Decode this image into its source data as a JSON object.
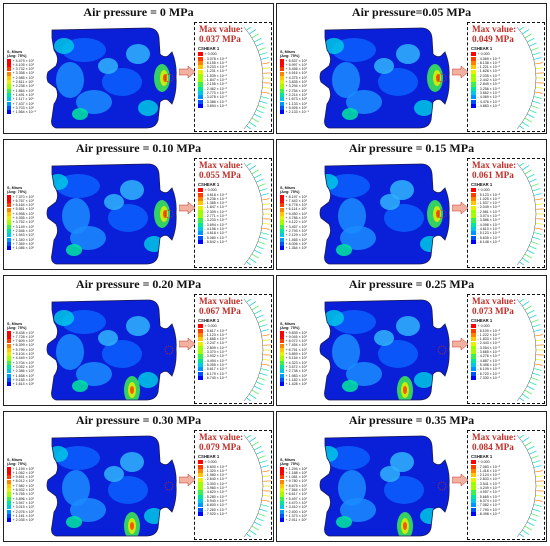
{
  "colors": {
    "contour": [
      "#0000ff",
      "#0050ff",
      "#0096ff",
      "#00c8e6",
      "#00e6a0",
      "#3cf050",
      "#a0ff00",
      "#e6f000",
      "#ffc800",
      "#ff8200",
      "#ff3c00",
      "#ff0000"
    ],
    "max_value_text": "#c0302a"
  },
  "panels": [
    {
      "title": "Air pressure = 0 MPa",
      "max_label": "Max value:",
      "max_value": "0.037 MPa",
      "smises_title": [
        "S, Mises",
        "(Avg: 75%)"
      ],
      "smises": [
        "+ 4.479 × 10¹",
        "+ 4.105 × 10¹",
        "+ 3.732 × 10¹",
        "+ 3.358 × 10¹",
        "+ 2.985 × 10¹",
        "+ 2.611 × 10¹",
        "+ 2.238 × 10¹",
        "+ 1.864 × 10¹",
        "+ 1.491 × 10¹",
        "+ 1.117 × 10¹",
        "+ 7.437 × 10⁰",
        "+ 3.703 × 10⁰",
        "+ 1.564 × 10⁻²"
      ],
      "cshear_title": "CSHEAR 1",
      "cshear": [
        "+ 0.000",
        "- 3.078 × 10⁻³",
        "- 6.155 × 10⁻³",
        "- 9.233 × 10⁻³",
        "- 1.231 × 10⁻²",
        "- 1.539 × 10⁻²",
        "- 1.847 × 10⁻²",
        "- 2.155 × 10⁻²",
        "- 2.462 × 10⁻²",
        "- 2.770 × 10⁻²",
        "- 3.078 × 10⁻²",
        "- 3.386 × 10⁻²",
        "- 3.694 × 10⁻²"
      ]
    },
    {
      "title": "Air pressure=0.05 MPa",
      "max_label": "Max value:",
      "max_value": "0.049 MPa",
      "smises_title": [
        "S, Mises",
        "(Avg: 75%)"
      ],
      "smises": [
        "+ 6.537 × 10¹",
        "+ 5.997 × 10¹",
        "+ 5.456 × 10¹",
        "+ 4.916 × 10¹",
        "+ 4.375 × 10¹",
        "+ 3.835 × 10¹",
        "+ 3.294 × 10¹",
        "+ 2.754 × 10¹",
        "+ 2.214 × 10¹",
        "+ 1.673 × 10¹",
        "+ 1.133 × 10¹",
        "+ 5.926 × 10⁰",
        "+ 2.133 × 10⁻¹"
      ],
      "cshear_title": "CSHEAR 1",
      "cshear": [
        "+ 0.000",
        "- 4.069 × 10⁻³",
        "- 8.138 × 10⁻³",
        "- 1.221 × 10⁻²",
        "- 1.628 × 10⁻²",
        "- 2.035 × 10⁻²",
        "- 2.442 × 10⁻²",
        "- 2.849 × 10⁻²",
        "- 3.256 × 10⁻²",
        "- 3.662 × 10⁻²",
        "- 4.069 × 10⁻²",
        "- 4.476 × 10⁻²",
        "- 4.883 × 10⁻²"
      ]
    },
    {
      "title": "Air pressure = 0.10 MPa",
      "max_label": "Max value:",
      "max_value": "0.055 MPa",
      "smises_title": [
        "S, Mises",
        "(Avg: 75%)"
      ],
      "smises": [
        "+ 7.370 × 10¹",
        "+ 6.767 × 10¹",
        "+ 6.164 × 10¹",
        "+ 5.561 × 10¹",
        "+ 4.958 × 10¹",
        "+ 4.355 × 10¹",
        "+ 3.752 × 10¹",
        "+ 3.149 × 10¹",
        "+ 2.546 × 10¹",
        "+ 1.943 × 10¹",
        "+ 1.340 × 10¹",
        "+ 7.369 × 10⁰",
        "+ 1.086 × 10⁰"
      ],
      "cshear_title": "CSHEAR 1",
      "cshear": [
        "+ 0.000",
        "- 4.618 × 10⁻³",
        "- 9.236 × 10⁻³",
        "- 1.385 × 10⁻²",
        "- 1.847 × 10⁻²",
        "- 2.309 × 10⁻²",
        "- 2.771 × 10⁻²",
        "- 3.233 × 10⁻²",
        "- 3.694 × 10⁻²",
        "- 4.156 × 10⁻²",
        "- 4.618 × 10⁻²",
        "- 5.080 × 10⁻²",
        "- 5.542 × 10⁻²"
      ]
    },
    {
      "title": "Air pressure = 0.15 MPa",
      "max_label": "Max value:",
      "max_value": "0.061 MPa",
      "smises_title": [
        "S, Mises",
        "(Avg: 75%)"
      ],
      "smises": [
        "+ 8.197 × 10¹",
        "+ 7.442 × 10¹",
        "+ 6.778 × 10¹",
        "+ 6.114 × 10¹",
        "+ 5.450 × 10¹",
        "+ 4.786 × 10¹",
        "+ 4.122 × 10¹",
        "+ 3.457 × 10¹",
        "+ 2.793 × 10¹",
        "+ 2.129 × 10¹",
        "+ 1.465 × 10¹",
        "+ 8.006 × 10⁰",
        "+ 1.364 × 10⁰"
      ],
      "cshear_title": "CSHEAR 1",
      "cshear": [
        "+ 0.000",
        "- 5.123 × 10⁻³",
        "- 1.025 × 10⁻²",
        "- 1.537 × 10⁻²",
        "- 2.049 × 10⁻²",
        "- 2.561 × 10⁻²",
        "- 3.074 × 10⁻²",
        "- 3.586 × 10⁻²",
        "- 4.098 × 10⁻²",
        "- 4.610 × 10⁻²",
        "- 5.123 × 10⁻²",
        "- 5.635 × 10⁻²",
        "- 6.148 × 10⁻²"
      ]
    },
    {
      "title": "Air pressure = 0.20 MPa",
      "max_label": "Max value:",
      "max_value": "0.067 MPa",
      "smises_title": [
        "S, Mises",
        "(Avg: 75%)"
      ],
      "smises": [
        "+ 8.438 × 10¹",
        "+ 7.728 × 10¹",
        "+ 7.609 × 10¹",
        "+ 6.399 × 10¹",
        "+ 5.799 × 10¹",
        "+ 5.104 × 10¹",
        "+ 4.449 × 10¹",
        "+ 3.704 × 10¹",
        "+ 3.052 × 10¹",
        "+ 2.386 × 10¹",
        "+ 1.658 × 10¹",
        "+ 9.165 × 10⁰",
        "+ 1.614 × 10⁰"
      ],
      "cshear_title": "CSHEAR 1",
      "cshear": [
        "+ 0.000",
        "- 5.617 × 10⁻³",
        "- 1.123 × 10⁻²",
        "- 1.685 × 10⁻²",
        "- 2.247 × 10⁻²",
        "- 2.809 × 10⁻²",
        "- 3.370 × 10⁻²",
        "- 3.932 × 10⁻²",
        "- 4.494 × 10⁻²",
        "- 5.055 × 10⁻²",
        "- 5.617 × 10⁻²",
        "- 6.179 × 10⁻²",
        "- 6.740 × 10⁻²"
      ]
    },
    {
      "title": "Air pressure = 0.25 MPa",
      "max_label": "Max value:",
      "max_value": "0.073 MPa",
      "smises_title": [
        "S, Mises",
        "(Avg: 75%)"
      ],
      "smises": [
        "+ 9.839 × 10¹",
        "+ 9.045 × 10¹",
        "+ 8.072 × 10¹",
        "+ 7.454 × 10¹",
        "+ 6.751 × 10¹",
        "+ 5.859 × 10¹",
        "+ 5.154 × 10¹",
        "+ 4.323 × 10¹",
        "+ 3.572 × 10¹",
        "+ 2.738 × 10¹",
        "+ 1.983 × 10¹",
        "+ 1.182 × 10¹",
        "+ 1.428 × 10⁰"
      ],
      "cshear_title": "CSHEAR 1",
      "cshear": [
        "+ 0.000",
        "- 6.109 × 10⁻³",
        "- 1.222 × 10⁻²",
        "- 1.833 × 10⁻²",
        "- 2.443 × 10⁻²",
        "- 3.054 × 10⁻²",
        "- 3.665 × 10⁻²",
        "- 4.276 × 10⁻²",
        "- 4.887 × 10⁻²",
        "- 5.498 × 10⁻²",
        "- 6.109 × 10⁻²",
        "- 6.720 × 10⁻²",
        "- 7.330 × 10⁻²"
      ]
    },
    {
      "title": "Air pressure = 0.30 MPa",
      "max_label": "Max value:",
      "max_value": "0.079 MPa",
      "smises_title": [
        "S, Mises",
        "(Avg: 75%)"
      ],
      "smises": [
        "+ 1.159 × 10²",
        "+ 1.062 × 10²",
        "+ 9.651 × 10¹",
        "+ 8.012 × 10¹",
        "+ 7.982 × 10¹",
        "+ 6.932 × 10¹",
        "+ 5.765 × 10¹",
        "+ 4.896 × 10¹",
        "+ 3.947 × 10¹",
        "+ 3.015 × 10¹",
        "+ 2.076 × 10¹",
        "+ 1.161 × 10¹",
        "+ 2.035 × 10⁰"
      ],
      "cshear_title": "CSHEAR 1",
      "cshear": [
        "+ 0.000",
        "- 6.600 × 10⁻³",
        "- 1.320 × 10⁻²",
        "- 1.980 × 10⁻²",
        "- 2.640 × 10⁻²",
        "- 3.300 × 10⁻²",
        "- 3.960 × 10⁻²",
        "- 4.620 × 10⁻²",
        "- 5.280 × 10⁻²",
        "- 5.940 × 10⁻²",
        "- 6.600 × 10⁻²",
        "- 7.260 × 10⁻²",
        "- 7.920 × 10⁻²"
      ]
    },
    {
      "title": "Air pressure = 0.35 MPa",
      "max_label": "Max value:",
      "max_value": "0.084 MPa",
      "smises_title": [
        "S, Mises",
        "(Avg: 75%)"
      ],
      "smises": [
        "+ 1.294 × 10²",
        "+ 1.188 × 10²",
        "+ 1.081 × 10²",
        "+ 9.780 × 10¹",
        "+ 8.675 × 10¹",
        "+ 7.564 × 10¹",
        "+ 6.617 × 10¹",
        "+ 5.497 × 10¹",
        "+ 4.470 × 10¹",
        "+ 3.410 × 10¹",
        "+ 2.400 × 10¹",
        "+ 1.373 × 10¹",
        "+ 2.911 × 10⁰"
      ],
      "cshear_title": "CSHEAR 1",
      "cshear": [
        "+ 0.000",
        "- 7.083 × 10⁻³",
        "- 1.416 × 10⁻²",
        "- 2.124 × 10⁻²",
        "- 2.833 × 10⁻²",
        "- 3.541 × 10⁻²",
        "- 4.249 × 10⁻²",
        "- 4.957 × 10⁻²",
        "- 5.665 × 10⁻²",
        "- 6.374 × 10⁻²",
        "- 7.082 × 10⁻²",
        "- 7.790 × 10⁻²",
        "- 8.498 × 10⁻²"
      ]
    }
  ]
}
